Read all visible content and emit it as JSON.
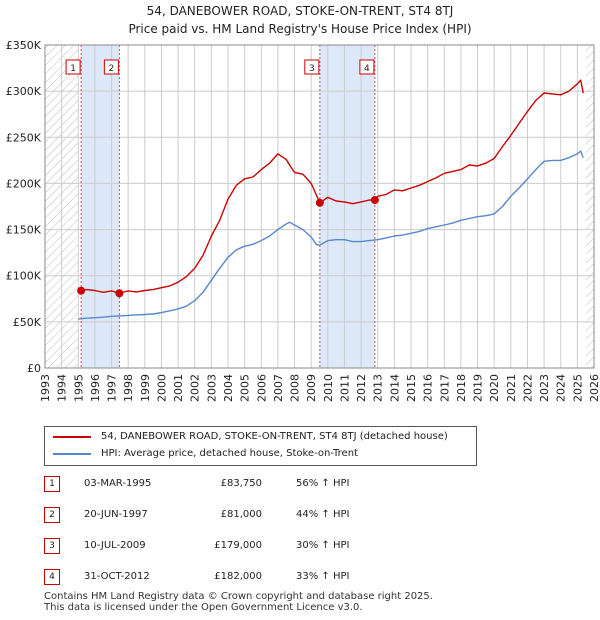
{
  "title": "54, DANEBOWER ROAD, STOKE-ON-TRENT, ST4 8TJ",
  "subtitle": "Price paid vs. HM Land Registry's House Price Index (HPI)",
  "colors": {
    "property": "#cc0000",
    "hpi": "#5588cc",
    "band": "#dde8f8",
    "grid": "#cccccc",
    "hatch": "#bbbbbb"
  },
  "chart_data": {
    "type": "line",
    "xlim": [
      1993,
      2026
    ],
    "ylim": [
      0,
      350000
    ],
    "yticks": [
      0,
      50000,
      100000,
      150000,
      200000,
      250000,
      300000,
      350000
    ],
    "yticklabels": [
      "£0",
      "£50K",
      "£100K",
      "£150K",
      "£200K",
      "£250K",
      "£300K",
      "£350K"
    ],
    "xticks": [
      1993,
      1994,
      1995,
      1996,
      1997,
      1998,
      1999,
      2000,
      2001,
      2002,
      2003,
      2004,
      2005,
      2006,
      2007,
      2008,
      2009,
      2010,
      2011,
      2012,
      2013,
      2014,
      2015,
      2016,
      2017,
      2018,
      2019,
      2020,
      2021,
      2022,
      2023,
      2024,
      2025,
      2026
    ],
    "xticklabels": [
      "1993",
      "1994",
      "1995",
      "1996",
      "1997",
      "1998",
      "1999",
      "2000",
      "2001",
      "2002",
      "2003",
      "2004",
      "2005",
      "2006",
      "2007",
      "2008",
      "2009",
      "2010",
      "2011",
      "2012",
      "2013",
      "2014",
      "2015",
      "2016",
      "2017",
      "2018",
      "2019",
      "2020",
      "2021",
      "2022",
      "2023",
      "2024",
      "2025",
      "2026"
    ],
    "hatch_before": 1995.0,
    "hatch_after": 2025.5,
    "bands": [
      [
        1995.17,
        1997.47
      ],
      [
        2009.52,
        2012.83
      ]
    ],
    "series": [
      {
        "name": "54, DANEBOWER ROAD, STOKE-ON-TRENT, ST4 8TJ (detached house)",
        "x": [
          1995.0,
          1995.17,
          1995.5,
          1996.0,
          1996.5,
          1997.0,
          1997.47,
          1998.0,
          1998.5,
          1999.0,
          1999.5,
          2000.0,
          2000.5,
          2001.0,
          2001.5,
          2002.0,
          2002.5,
          2003.0,
          2003.5,
          2004.0,
          2004.5,
          2005.0,
          2005.5,
          2006.0,
          2006.5,
          2007.0,
          2007.5,
          2007.7,
          2008.0,
          2008.5,
          2009.0,
          2009.3,
          2009.52,
          2010.0,
          2010.5,
          2011.0,
          2011.5,
          2012.0,
          2012.5,
          2012.83,
          2013.0,
          2013.5,
          2014.0,
          2014.5,
          2015.0,
          2015.5,
          2016.0,
          2016.5,
          2017.0,
          2017.5,
          2018.0,
          2018.5,
          2019.0,
          2019.5,
          2020.0,
          2020.5,
          2021.0,
          2021.5,
          2022.0,
          2022.5,
          2023.0,
          2023.5,
          2024.0,
          2024.5,
          2025.0,
          2025.2,
          2025.35
        ],
        "values": [
          82000,
          83750,
          85000,
          84000,
          82000,
          83500,
          81000,
          83500,
          82500,
          84000,
          85000,
          87000,
          89000,
          93000,
          99000,
          108000,
          122000,
          143000,
          160000,
          183000,
          198000,
          205000,
          207000,
          215000,
          222000,
          232000,
          226000,
          220000,
          212000,
          210000,
          200000,
          188000,
          179000,
          185000,
          181000,
          180000,
          178000,
          180000,
          182000,
          182000,
          186000,
          188000,
          193000,
          192000,
          195000,
          198000,
          202000,
          206000,
          211000,
          213000,
          215000,
          220000,
          219000,
          222000,
          227000,
          240000,
          252000,
          265000,
          278000,
          290000,
          298000,
          297000,
          296000,
          300000,
          308000,
          312000,
          298000
        ]
      },
      {
        "name": "HPI: Average price, detached house, Stoke-on-Trent",
        "x": [
          1995.0,
          1995.5,
          1996.0,
          1996.5,
          1997.0,
          1997.5,
          1998.0,
          1998.5,
          1999.0,
          1999.5,
          2000.0,
          2000.5,
          2001.0,
          2001.5,
          2002.0,
          2002.5,
          2003.0,
          2003.5,
          2004.0,
          2004.5,
          2005.0,
          2005.5,
          2006.0,
          2006.5,
          2007.0,
          2007.5,
          2007.7,
          2008.0,
          2008.5,
          2009.0,
          2009.3,
          2009.5,
          2010.0,
          2010.5,
          2011.0,
          2011.5,
          2012.0,
          2012.5,
          2013.0,
          2013.5,
          2014.0,
          2014.5,
          2015.0,
          2015.5,
          2016.0,
          2016.5,
          2017.0,
          2017.5,
          2018.0,
          2018.5,
          2019.0,
          2019.5,
          2020.0,
          2020.5,
          2021.0,
          2021.5,
          2022.0,
          2022.5,
          2023.0,
          2023.5,
          2024.0,
          2024.5,
          2025.0,
          2025.2,
          2025.35
        ],
        "values": [
          53000,
          54000,
          54500,
          55000,
          56000,
          56500,
          57000,
          57500,
          58000,
          58500,
          60000,
          62000,
          64000,
          67000,
          73000,
          82000,
          95000,
          108000,
          120000,
          128000,
          132000,
          134000,
          138000,
          143000,
          150000,
          156000,
          158000,
          155000,
          150000,
          142000,
          134000,
          133000,
          138000,
          139000,
          139000,
          137000,
          137000,
          138000,
          139000,
          141000,
          143000,
          144000,
          146000,
          148000,
          151000,
          153000,
          155000,
          157000,
          160000,
          162000,
          164000,
          165000,
          167000,
          175000,
          186000,
          195000,
          205000,
          215000,
          224000,
          225000,
          225000,
          228000,
          232000,
          235000,
          228000
        ]
      }
    ],
    "markers": [
      {
        "label": "1",
        "x": 1995.17,
        "value": 83750
      },
      {
        "label": "2",
        "x": 1997.47,
        "value": 81000
      },
      {
        "label": "3",
        "x": 2009.52,
        "value": 179000
      },
      {
        "label": "4",
        "x": 2012.83,
        "value": 182000
      }
    ]
  },
  "legend": {
    "property_label": "54, DANEBOWER ROAD, STOKE-ON-TRENT, ST4 8TJ (detached house)",
    "hpi_label": "HPI: Average price, detached house, Stoke-on-Trent"
  },
  "sales": [
    {
      "num": "1",
      "date": "03-MAR-1995",
      "price": "£83,750",
      "pct": "56% ↑ HPI"
    },
    {
      "num": "2",
      "date": "20-JUN-1997",
      "price": "£81,000",
      "pct": "44% ↑ HPI"
    },
    {
      "num": "3",
      "date": "10-JUL-2009",
      "price": "£179,000",
      "pct": "30% ↑ HPI"
    },
    {
      "num": "4",
      "date": "31-OCT-2012",
      "price": "£182,000",
      "pct": "33% ↑ HPI"
    }
  ],
  "footer": {
    "line1": "Contains HM Land Registry data © Crown copyright and database right 2025.",
    "line2": "This data is licensed under the Open Government Licence v3.0."
  }
}
